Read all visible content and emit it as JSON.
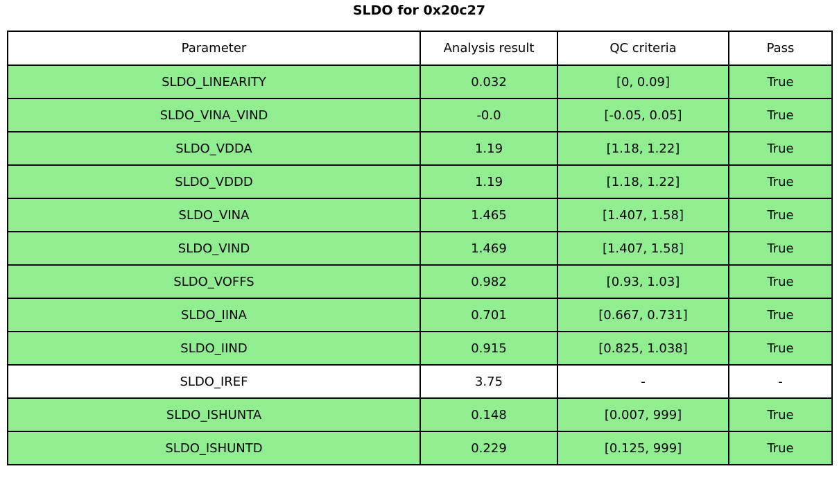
{
  "title": "SLDO for 0x20c27",
  "colors": {
    "pass_row_bg": "#90ee90",
    "neutral_row_bg": "#ffffff",
    "border": "#000000",
    "text": "#000000"
  },
  "chart_data": {
    "type": "table",
    "title": "SLDO for 0x20c27",
    "columns": [
      "Parameter",
      "Analysis result",
      "QC criteria",
      "Pass"
    ],
    "rows": [
      {
        "parameter": "SLDO_LINEARITY",
        "analysis_result": "0.032",
        "qc_criteria": "[0, 0.09]",
        "pass": "True",
        "highlighted": true
      },
      {
        "parameter": "SLDO_VINA_VIND",
        "analysis_result": "-0.0",
        "qc_criteria": "[-0.05, 0.05]",
        "pass": "True",
        "highlighted": true
      },
      {
        "parameter": "SLDO_VDDA",
        "analysis_result": "1.19",
        "qc_criteria": "[1.18, 1.22]",
        "pass": "True",
        "highlighted": true
      },
      {
        "parameter": "SLDO_VDDD",
        "analysis_result": "1.19",
        "qc_criteria": "[1.18, 1.22]",
        "pass": "True",
        "highlighted": true
      },
      {
        "parameter": "SLDO_VINA",
        "analysis_result": "1.465",
        "qc_criteria": "[1.407, 1.58]",
        "pass": "True",
        "highlighted": true
      },
      {
        "parameter": "SLDO_VIND",
        "analysis_result": "1.469",
        "qc_criteria": "[1.407, 1.58]",
        "pass": "True",
        "highlighted": true
      },
      {
        "parameter": "SLDO_VOFFS",
        "analysis_result": "0.982",
        "qc_criteria": "[0.93, 1.03]",
        "pass": "True",
        "highlighted": true
      },
      {
        "parameter": "SLDO_IINA",
        "analysis_result": "0.701",
        "qc_criteria": "[0.667, 0.731]",
        "pass": "True",
        "highlighted": true
      },
      {
        "parameter": "SLDO_IIND",
        "analysis_result": "0.915",
        "qc_criteria": "[0.825, 1.038]",
        "pass": "True",
        "highlighted": true
      },
      {
        "parameter": "SLDO_IREF",
        "analysis_result": "3.75",
        "qc_criteria": "-",
        "pass": "-",
        "highlighted": false
      },
      {
        "parameter": "SLDO_ISHUNTA",
        "analysis_result": "0.148",
        "qc_criteria": "[0.007, 999]",
        "pass": "True",
        "highlighted": true
      },
      {
        "parameter": "SLDO_ISHUNTD",
        "analysis_result": "0.229",
        "qc_criteria": "[0.125, 999]",
        "pass": "True",
        "highlighted": true
      }
    ]
  }
}
